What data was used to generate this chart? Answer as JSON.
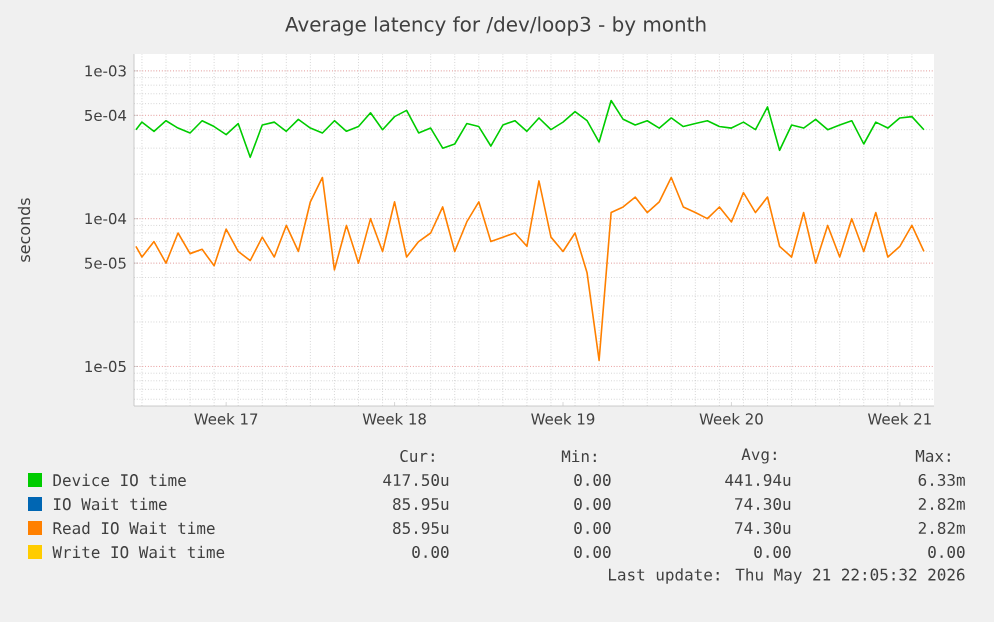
{
  "chart_data": {
    "type": "line",
    "title": "Average latency for /dev/loop3 - by month",
    "ylabel": "seconds",
    "log": "y",
    "grid": true,
    "legend": "bottom",
    "marker": "none",
    "line_style": "solid",
    "xlim": [
      "2026-04-18T16:05",
      "2026-05-21T22:05"
    ],
    "xticks": [
      {
        "value": "2026-04-22T12:00",
        "label": "Week 17"
      },
      {
        "value": "2026-04-29T12:00",
        "label": "Week 18"
      },
      {
        "value": "2026-05-06T12:00",
        "label": "Week 19"
      },
      {
        "value": "2026-05-13T12:00",
        "label": "Week 20"
      },
      {
        "value": "2026-05-20T12:00",
        "label": "Week 21"
      }
    ],
    "ylim": [
      5.4e-06,
      0.0013
    ],
    "yticks": [
      {
        "value": 1e-05,
        "label": "1e-05"
      },
      {
        "value": 5e-05,
        "label": "5e-05"
      },
      {
        "value": 0.0001,
        "label": "1e-04"
      },
      {
        "value": 0.0005,
        "label": "5e-04"
      },
      {
        "value": 0.001,
        "label": "1e-03"
      }
    ],
    "x": [
      "2026-04-18T18:00",
      "2026-04-19T00:00",
      "2026-04-19T12:00",
      "2026-04-20T00:00",
      "2026-04-20T12:00",
      "2026-04-21T00:00",
      "2026-04-21T12:00",
      "2026-04-22T00:00",
      "2026-04-22T12:00",
      "2026-04-23T00:00",
      "2026-04-23T12:00",
      "2026-04-24T00:00",
      "2026-04-24T12:00",
      "2026-04-25T00:00",
      "2026-04-25T12:00",
      "2026-04-26T00:00",
      "2026-04-26T12:00",
      "2026-04-27T00:00",
      "2026-04-27T12:00",
      "2026-04-28T00:00",
      "2026-04-28T12:00",
      "2026-04-29T00:00",
      "2026-04-29T12:00",
      "2026-04-30T00:00",
      "2026-04-30T12:00",
      "2026-05-01T00:00",
      "2026-05-01T12:00",
      "2026-05-02T00:00",
      "2026-05-02T12:00",
      "2026-05-03T00:00",
      "2026-05-03T12:00",
      "2026-05-04T00:00",
      "2026-05-04T12:00",
      "2026-05-05T00:00",
      "2026-05-05T12:00",
      "2026-05-06T00:00",
      "2026-05-06T12:00",
      "2026-05-07T00:00",
      "2026-05-07T12:00",
      "2026-05-08T00:00",
      "2026-05-08T12:00",
      "2026-05-09T00:00",
      "2026-05-09T12:00",
      "2026-05-10T00:00",
      "2026-05-10T12:00",
      "2026-05-11T00:00",
      "2026-05-11T12:00",
      "2026-05-12T00:00",
      "2026-05-12T12:00",
      "2026-05-13T00:00",
      "2026-05-13T12:00",
      "2026-05-14T00:00",
      "2026-05-14T12:00",
      "2026-05-15T00:00",
      "2026-05-15T12:00",
      "2026-05-16T00:00",
      "2026-05-16T12:00",
      "2026-05-17T00:00",
      "2026-05-17T12:00",
      "2026-05-18T00:00",
      "2026-05-18T12:00",
      "2026-05-19T00:00",
      "2026-05-19T12:00",
      "2026-05-20T00:00",
      "2026-05-20T12:00",
      "2026-05-21T00:00",
      "2026-05-21T12:00"
    ],
    "series": [
      {
        "name": "Device IO time",
        "color": "#00cc00",
        "values": [
          0.0004,
          0.00045,
          0.00039,
          0.00046,
          0.00041,
          0.00038,
          0.00046,
          0.00042,
          0.00037,
          0.00044,
          0.00026,
          0.00043,
          0.00045,
          0.00039,
          0.00047,
          0.00041,
          0.00038,
          0.00046,
          0.00039,
          0.00042,
          0.00052,
          0.0004,
          0.00049,
          0.00054,
          0.00038,
          0.00041,
          0.0003,
          0.00032,
          0.00044,
          0.00042,
          0.00031,
          0.00043,
          0.00046,
          0.00039,
          0.00048,
          0.0004,
          0.00045,
          0.00053,
          0.00046,
          0.00033,
          0.00063,
          0.00047,
          0.00043,
          0.00046,
          0.00041,
          0.00048,
          0.00042,
          0.00044,
          0.00046,
          0.00042,
          0.00041,
          0.00045,
          0.0004,
          0.00057,
          0.00029,
          0.00043,
          0.00041,
          0.00047,
          0.0004,
          0.00043,
          0.00046,
          0.00032,
          0.00045,
          0.00041,
          0.00048,
          0.00049,
          0.0004
        ]
      },
      {
        "name": "IO Wait time",
        "color": "#0066b3",
        "values": [
          null,
          null,
          null,
          null,
          null,
          null,
          null,
          null,
          null,
          null,
          null,
          null,
          null,
          null,
          null,
          null,
          null,
          null,
          null,
          null,
          null,
          null,
          null,
          null,
          null,
          null,
          null,
          null,
          null,
          null,
          null,
          null,
          null,
          null,
          null,
          null,
          null,
          null,
          null,
          null,
          null,
          null,
          null,
          null,
          null,
          null,
          null,
          null,
          null,
          null,
          null,
          null,
          null,
          null,
          null,
          null,
          null,
          null,
          null,
          null,
          null,
          null,
          null,
          null,
          null,
          null,
          null
        ]
      },
      {
        "name": "Read IO Wait time",
        "color": "#ff8000",
        "values": [
          6.5e-05,
          5.5e-05,
          7e-05,
          5e-05,
          8e-05,
          5.8e-05,
          6.2e-05,
          4.8e-05,
          8.5e-05,
          6e-05,
          5.2e-05,
          7.5e-05,
          5.5e-05,
          9e-05,
          6e-05,
          0.00013,
          0.00019,
          4.5e-05,
          9e-05,
          5e-05,
          0.0001,
          6e-05,
          0.00013,
          5.5e-05,
          7e-05,
          8e-05,
          0.00012,
          6e-05,
          9.5e-05,
          0.00013,
          7e-05,
          7.5e-05,
          8e-05,
          6.5e-05,
          0.00018,
          7.5e-05,
          6e-05,
          8e-05,
          4.3e-05,
          1.1e-05,
          0.00011,
          0.00012,
          0.00014,
          0.00011,
          0.00013,
          0.00019,
          0.00012,
          0.00011,
          0.0001,
          0.00012,
          9.5e-05,
          0.00015,
          0.00011,
          0.00014,
          6.5e-05,
          5.5e-05,
          0.00011,
          5e-05,
          9e-05,
          5.5e-05,
          0.0001,
          6e-05,
          0.00011,
          5.5e-05,
          6.5e-05,
          9e-05,
          6e-05
        ]
      },
      {
        "name": "Write IO Wait time",
        "color": "#ffcc00",
        "values": [
          null,
          null,
          null,
          null,
          null,
          null,
          null,
          null,
          null,
          null,
          null,
          null,
          null,
          null,
          null,
          null,
          null,
          null,
          null,
          null,
          null,
          null,
          null,
          null,
          null,
          null,
          null,
          null,
          null,
          null,
          null,
          null,
          null,
          null,
          null,
          null,
          null,
          null,
          null,
          null,
          null,
          null,
          null,
          null,
          null,
          null,
          null,
          null,
          null,
          null,
          null,
          null,
          null,
          null,
          null,
          null,
          null,
          null,
          null,
          null,
          null,
          null,
          null,
          null,
          null,
          null,
          null
        ]
      }
    ],
    "annotations": [
      "Cur:",
      "Min:",
      "Avg:",
      "Max:",
      "417.50u",
      "0.00",
      "441.94u",
      "6.33m",
      "85.95u",
      "0.00",
      "74.30u",
      "2.82m",
      "85.95u",
      "0.00",
      "74.30u",
      "2.82m",
      "0.00",
      "0.00",
      "0.00",
      "0.00",
      "Last update: Thu May 21 22:05:32 2026"
    ]
  }
}
